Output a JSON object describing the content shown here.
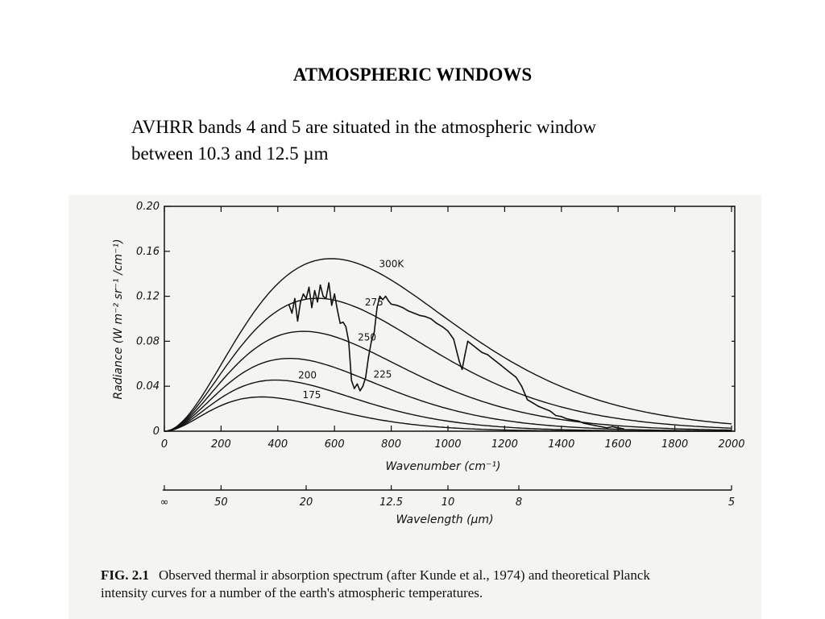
{
  "slide": {
    "title": "ATMOSPHERIC WINDOWS",
    "body_line1": "AVHRR bands 4 and 5 are situated in the atmospheric window",
    "body_line2": "between 10.3 and 12.5 µm"
  },
  "caption": {
    "label": "FIG. 2.1",
    "line1": "Observed thermal ir absorption spectrum (after Kunde et al., 1974) and theoretical Planck",
    "line2": "intensity curves for a number of the earth's atmospheric temperatures."
  },
  "chart_data": {
    "type": "line",
    "title": "",
    "xlabel": "Wavenumber (cm⁻¹)",
    "ylabel": "Radiance (W m⁻² sr⁻¹ /cm⁻¹)",
    "xlim": [
      0,
      2000
    ],
    "ylim": [
      0,
      0.2
    ],
    "x_ticks": [
      "0",
      "200",
      "400",
      "600",
      "800",
      "1000",
      "1200",
      "1400",
      "1600",
      "1800",
      "2000"
    ],
    "y_ticks": [
      "0",
      "0.04",
      "0.08",
      "0.12",
      "0.16",
      "0.20"
    ],
    "secondary_axis": {
      "label": "Wavelength (µm)",
      "ticks": [
        {
          "label": "∞",
          "wavenumber": 0
        },
        {
          "label": "50",
          "wavenumber": 200
        },
        {
          "label": "20",
          "wavenumber": 500
        },
        {
          "label": "12.5",
          "wavenumber": 800
        },
        {
          "label": "10",
          "wavenumber": 1000
        },
        {
          "label": "8",
          "wavenumber": 1250
        },
        {
          "label": "5",
          "wavenumber": 2000
        }
      ]
    },
    "planck_curves": [
      {
        "label": "300K",
        "temperature_K": 300
      },
      {
        "label": "275",
        "temperature_K": 275
      },
      {
        "label": "250",
        "temperature_K": 250
      },
      {
        "label": "225",
        "temperature_K": 225
      },
      {
        "label": "200",
        "temperature_K": 200
      },
      {
        "label": "175",
        "temperature_K": 175
      }
    ],
    "observed_spectrum": {
      "x": [
        440,
        450,
        460,
        470,
        480,
        490,
        500,
        510,
        520,
        530,
        540,
        550,
        560,
        570,
        580,
        590,
        600,
        610,
        620,
        630,
        640,
        650,
        660,
        670,
        680,
        690,
        700,
        710,
        720,
        730,
        740,
        750,
        760,
        770,
        780,
        790,
        800,
        820,
        840,
        860,
        880,
        900,
        920,
        940,
        960,
        980,
        1000,
        1020,
        1040,
        1050,
        1060,
        1070,
        1080,
        1100,
        1120,
        1140,
        1160,
        1180,
        1200,
        1220,
        1240,
        1260,
        1280,
        1300,
        1320,
        1340,
        1360,
        1380,
        1400,
        1420,
        1440,
        1460,
        1480,
        1500,
        1520,
        1540,
        1560,
        1580,
        1600,
        1620
      ],
      "y": [
        0.112,
        0.105,
        0.118,
        0.098,
        0.115,
        0.122,
        0.118,
        0.128,
        0.11,
        0.125,
        0.115,
        0.13,
        0.12,
        0.118,
        0.132,
        0.112,
        0.122,
        0.108,
        0.096,
        0.097,
        0.093,
        0.08,
        0.045,
        0.038,
        0.042,
        0.036,
        0.04,
        0.048,
        0.066,
        0.08,
        0.088,
        0.11,
        0.12,
        0.117,
        0.12,
        0.116,
        0.113,
        0.112,
        0.11,
        0.107,
        0.105,
        0.103,
        0.102,
        0.1,
        0.096,
        0.093,
        0.089,
        0.082,
        0.062,
        0.055,
        0.068,
        0.08,
        0.078,
        0.074,
        0.07,
        0.068,
        0.064,
        0.06,
        0.056,
        0.052,
        0.048,
        0.04,
        0.028,
        0.025,
        0.022,
        0.02,
        0.018,
        0.014,
        0.013,
        0.011,
        0.01,
        0.009,
        0.007,
        0.006,
        0.005,
        0.004,
        0.003,
        0.004,
        0.003,
        0.002
      ]
    }
  }
}
